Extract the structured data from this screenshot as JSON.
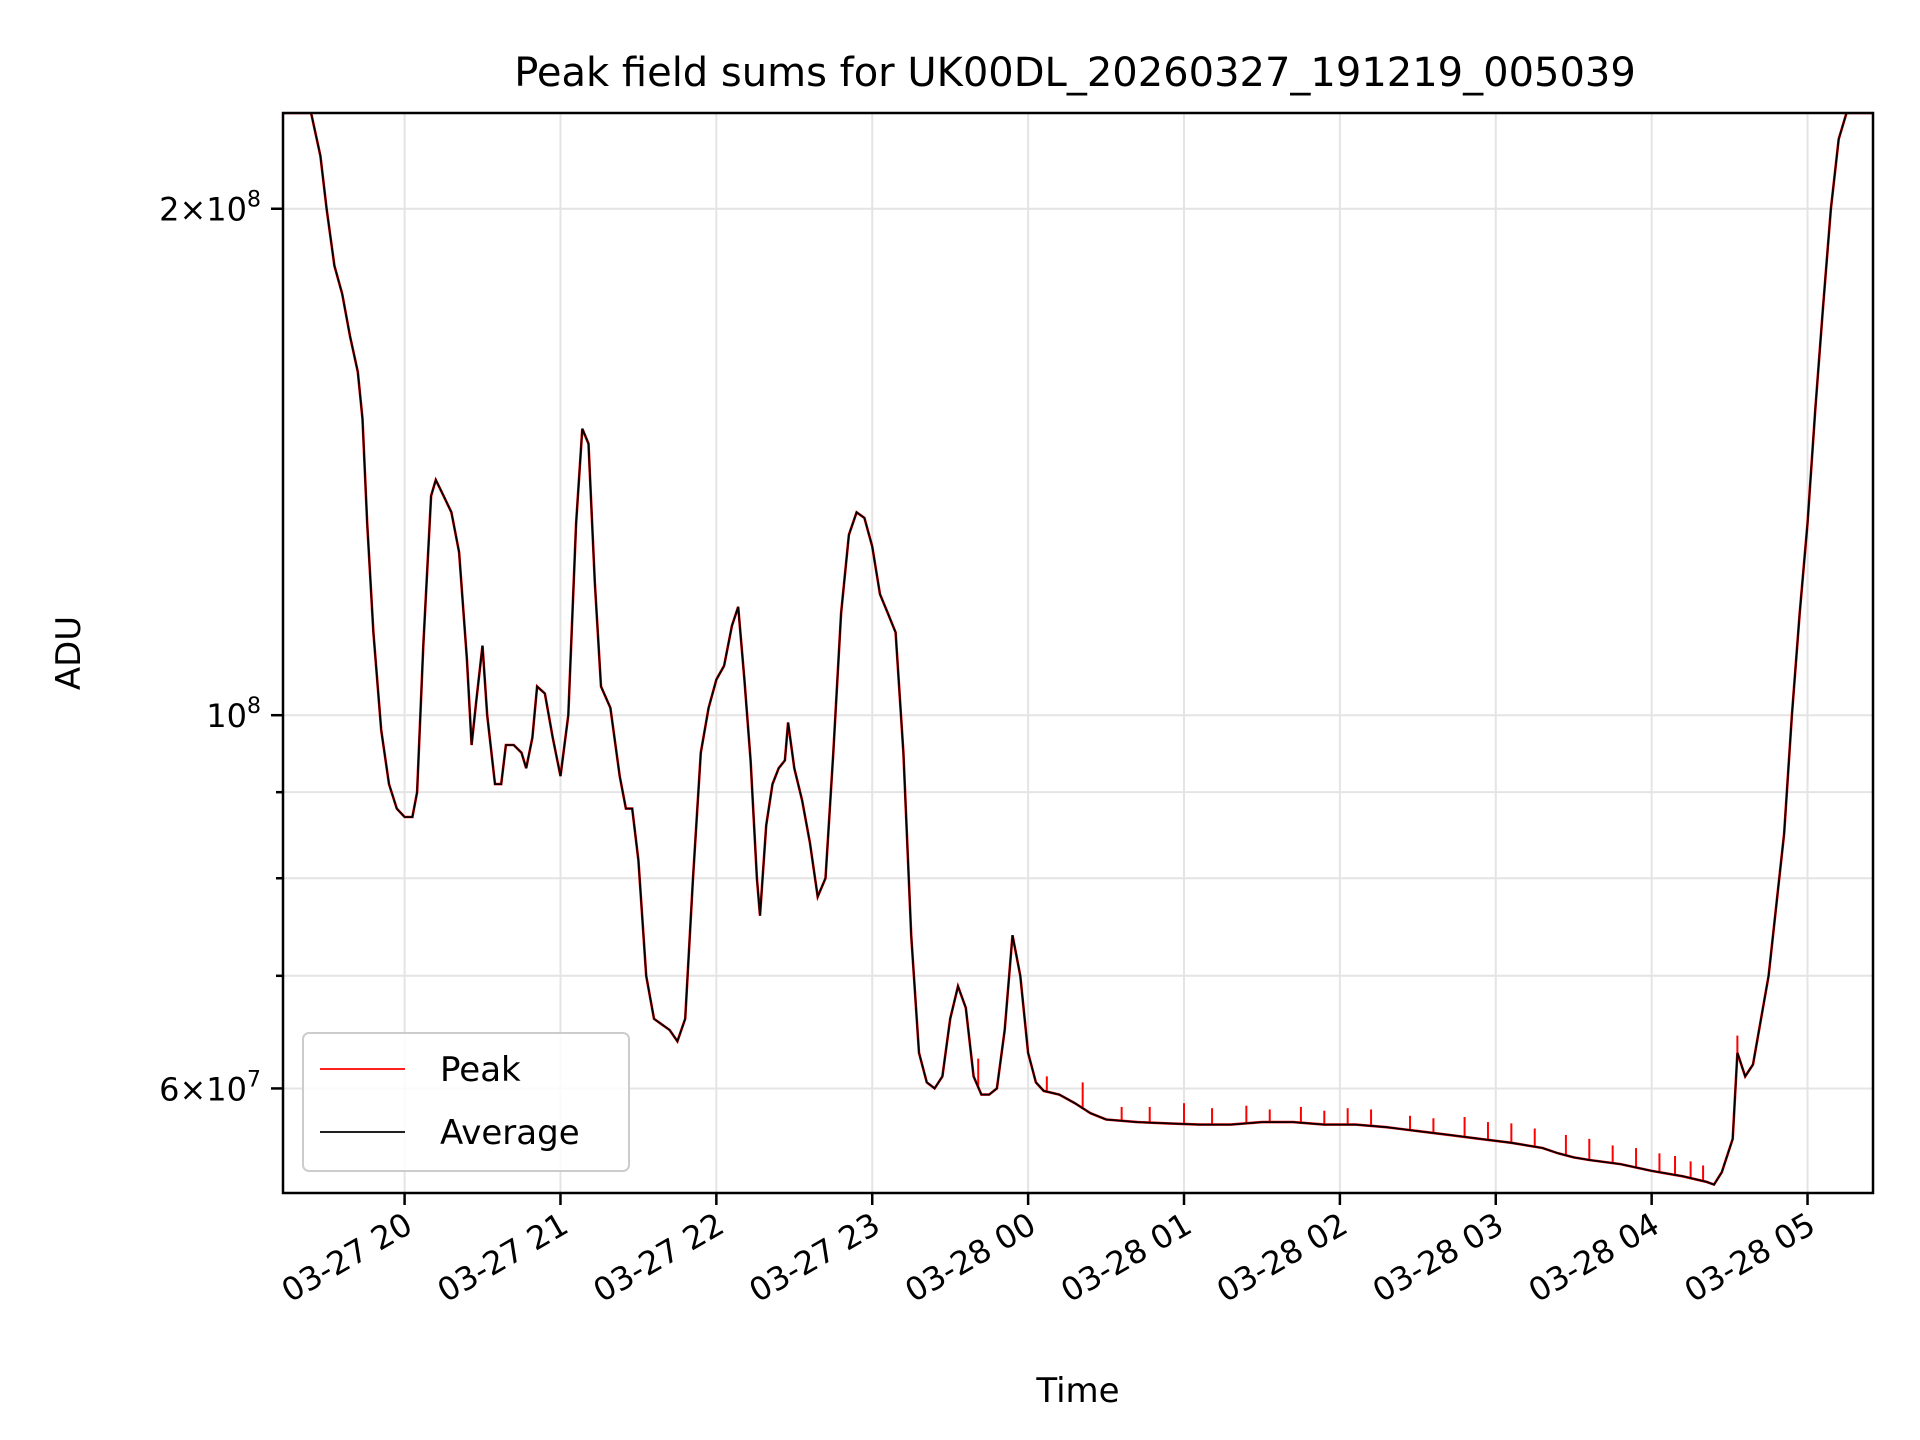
{
  "chart_data": {
    "type": "line",
    "title": "Peak field sums for UK00DL_20260327_191219_005039",
    "xlabel": "Time",
    "ylabel": "ADU",
    "yscale": "log",
    "ylim": [
      52000000,
      228000000
    ],
    "xlim_hours": [
      19.22,
      29.42
    ],
    "grid": true,
    "legend_placement": "lower-left",
    "x_ticks": [
      "03-27 20",
      "03-27 21",
      "03-27 22",
      "03-27 23",
      "03-28 00",
      "03-28 01",
      "03-28 02",
      "03-28 03",
      "03-28 04",
      "03-28 05"
    ],
    "x_tick_hours": [
      20,
      21,
      22,
      23,
      24,
      25,
      26,
      27,
      28,
      29
    ],
    "y_major_ticks": [
      {
        "value": 200000000,
        "mantissa": "2",
        "exponent": "8"
      },
      {
        "value": 100000000,
        "mantissa": "",
        "exponent": "8"
      },
      {
        "value": 60000000,
        "mantissa": "6",
        "exponent": "7"
      }
    ],
    "y_minor_ticks": [
      70000000,
      80000000,
      90000000
    ],
    "times_label": "Peak",
    "series": [
      {
        "name": "Average",
        "color": "#000000",
        "points": [
          [
            19.22,
            228000000
          ],
          [
            19.4,
            228000000
          ],
          [
            19.46,
            215000000
          ],
          [
            19.5,
            200000000
          ],
          [
            19.55,
            185000000
          ],
          [
            19.6,
            178000000
          ],
          [
            19.65,
            168000000
          ],
          [
            19.7,
            160000000
          ],
          [
            19.73,
            150000000
          ],
          [
            19.76,
            130000000
          ],
          [
            19.8,
            112000000
          ],
          [
            19.85,
            98000000
          ],
          [
            19.9,
            91000000
          ],
          [
            19.95,
            88000000
          ],
          [
            20.0,
            87000000
          ],
          [
            20.05,
            87000000
          ],
          [
            20.08,
            90000000
          ],
          [
            20.12,
            110000000
          ],
          [
            20.17,
            135000000
          ],
          [
            20.2,
            138000000
          ],
          [
            20.25,
            135000000
          ],
          [
            20.3,
            132000000
          ],
          [
            20.35,
            125000000
          ],
          [
            20.4,
            108000000
          ],
          [
            20.43,
            96000000
          ],
          [
            20.46,
            102000000
          ],
          [
            20.5,
            110000000
          ],
          [
            20.53,
            100000000
          ],
          [
            20.58,
            91000000
          ],
          [
            20.62,
            91000000
          ],
          [
            20.65,
            96000000
          ],
          [
            20.7,
            96000000
          ],
          [
            20.75,
            95000000
          ],
          [
            20.78,
            93000000
          ],
          [
            20.82,
            97000000
          ],
          [
            20.85,
            104000000
          ],
          [
            20.9,
            103000000
          ],
          [
            20.95,
            97000000
          ],
          [
            21.0,
            92000000
          ],
          [
            21.05,
            100000000
          ],
          [
            21.1,
            130000000
          ],
          [
            21.14,
            148000000
          ],
          [
            21.18,
            145000000
          ],
          [
            21.22,
            120000000
          ],
          [
            21.26,
            104000000
          ],
          [
            21.32,
            101000000
          ],
          [
            21.38,
            92000000
          ],
          [
            21.42,
            88000000
          ],
          [
            21.46,
            88000000
          ],
          [
            21.5,
            82000000
          ],
          [
            21.55,
            70000000
          ],
          [
            21.6,
            66000000
          ],
          [
            21.65,
            65500000
          ],
          [
            21.7,
            65000000
          ],
          [
            21.75,
            64000000
          ],
          [
            21.8,
            66000000
          ],
          [
            21.85,
            80000000
          ],
          [
            21.9,
            95000000
          ],
          [
            21.95,
            101000000
          ],
          [
            22.0,
            105000000
          ],
          [
            22.05,
            107000000
          ],
          [
            22.1,
            113000000
          ],
          [
            22.14,
            116000000
          ],
          [
            22.18,
            105000000
          ],
          [
            22.22,
            94000000
          ],
          [
            22.26,
            80000000
          ],
          [
            22.28,
            76000000
          ],
          [
            22.32,
            86000000
          ],
          [
            22.36,
            91000000
          ],
          [
            22.4,
            93000000
          ],
          [
            22.44,
            94000000
          ],
          [
            22.46,
            99000000
          ],
          [
            22.5,
            93000000
          ],
          [
            22.55,
            89000000
          ],
          [
            22.6,
            84000000
          ],
          [
            22.65,
            78000000
          ],
          [
            22.7,
            80000000
          ],
          [
            22.75,
            95000000
          ],
          [
            22.8,
            115000000
          ],
          [
            22.85,
            128000000
          ],
          [
            22.9,
            132000000
          ],
          [
            22.95,
            131000000
          ],
          [
            23.0,
            126000000
          ],
          [
            23.05,
            118000000
          ],
          [
            23.1,
            115000000
          ],
          [
            23.15,
            112000000
          ],
          [
            23.2,
            95000000
          ],
          [
            23.25,
            74000000
          ],
          [
            23.3,
            63000000
          ],
          [
            23.35,
            60500000
          ],
          [
            23.4,
            60000000
          ],
          [
            23.45,
            61000000
          ],
          [
            23.5,
            66000000
          ],
          [
            23.55,
            69000000
          ],
          [
            23.6,
            67000000
          ],
          [
            23.65,
            61000000
          ],
          [
            23.7,
            59500000
          ],
          [
            23.75,
            59500000
          ],
          [
            23.8,
            60000000
          ],
          [
            23.85,
            65000000
          ],
          [
            23.9,
            74000000
          ],
          [
            23.95,
            70000000
          ],
          [
            24.0,
            63000000
          ],
          [
            24.05,
            60500000
          ],
          [
            24.1,
            59800000
          ],
          [
            24.2,
            59500000
          ],
          [
            24.3,
            58800000
          ],
          [
            24.4,
            58000000
          ],
          [
            24.5,
            57500000
          ],
          [
            24.7,
            57300000
          ],
          [
            24.9,
            57200000
          ],
          [
            25.1,
            57100000
          ],
          [
            25.3,
            57100000
          ],
          [
            25.5,
            57300000
          ],
          [
            25.7,
            57300000
          ],
          [
            25.9,
            57100000
          ],
          [
            26.1,
            57100000
          ],
          [
            26.3,
            56900000
          ],
          [
            26.5,
            56600000
          ],
          [
            26.7,
            56300000
          ],
          [
            26.9,
            56000000
          ],
          [
            27.1,
            55700000
          ],
          [
            27.3,
            55300000
          ],
          [
            27.4,
            54900000
          ],
          [
            27.5,
            54600000
          ],
          [
            27.6,
            54400000
          ],
          [
            27.8,
            54100000
          ],
          [
            28.0,
            53600000
          ],
          [
            28.2,
            53200000
          ],
          [
            28.35,
            52800000
          ],
          [
            28.4,
            52600000
          ],
          [
            28.45,
            53500000
          ],
          [
            28.52,
            56000000
          ],
          [
            28.55,
            63000000
          ],
          [
            28.6,
            61000000
          ],
          [
            28.65,
            62000000
          ],
          [
            28.75,
            70000000
          ],
          [
            28.85,
            85000000
          ],
          [
            28.9,
            100000000
          ],
          [
            28.95,
            115000000
          ],
          [
            29.0,
            130000000
          ],
          [
            29.05,
            152000000
          ],
          [
            29.1,
            175000000
          ],
          [
            29.15,
            200000000
          ],
          [
            29.2,
            220000000
          ],
          [
            29.25,
            228000000
          ],
          [
            29.42,
            228000000
          ]
        ]
      }
    ],
    "peak_spikes": [
      [
        23.68,
        62500000
      ],
      [
        24.12,
        61000000
      ],
      [
        24.35,
        60500000
      ],
      [
        24.6,
        58500000
      ],
      [
        24.78,
        58500000
      ],
      [
        25.0,
        58800000
      ],
      [
        25.18,
        58400000
      ],
      [
        25.4,
        58600000
      ],
      [
        25.55,
        58300000
      ],
      [
        25.75,
        58500000
      ],
      [
        25.9,
        58200000
      ],
      [
        26.05,
        58400000
      ],
      [
        26.2,
        58300000
      ],
      [
        26.45,
        57800000
      ],
      [
        26.6,
        57600000
      ],
      [
        26.8,
        57700000
      ],
      [
        26.95,
        57300000
      ],
      [
        27.1,
        57200000
      ],
      [
        27.25,
        56800000
      ],
      [
        27.45,
        56300000
      ],
      [
        27.6,
        56000000
      ],
      [
        27.75,
        55500000
      ],
      [
        27.9,
        55300000
      ],
      [
        28.05,
        54900000
      ],
      [
        28.15,
        54700000
      ],
      [
        28.25,
        54300000
      ],
      [
        28.33,
        54000000
      ],
      [
        28.55,
        64500000
      ]
    ],
    "legend": [
      {
        "label": "Peak",
        "color": "#ff0000"
      },
      {
        "label": "Average",
        "color": "#000000"
      }
    ]
  }
}
